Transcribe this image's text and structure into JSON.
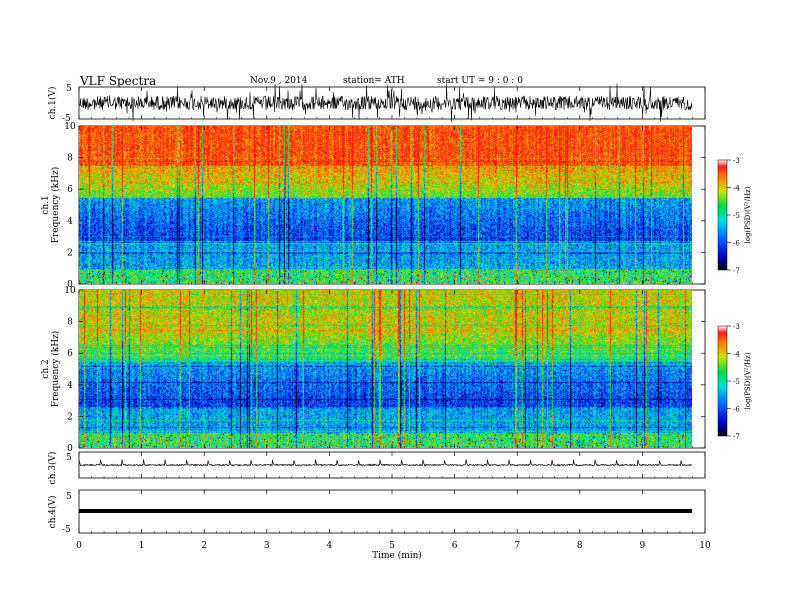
{
  "header": {
    "title": "VLF  Spectra",
    "date": "Nov.9  , 2014",
    "station": "station= ATH",
    "start": "start  UT  =   9  : 0  : 0"
  },
  "chart_data": {
    "type": "heatmap",
    "x": {
      "label": "Time  (min)",
      "range": [
        0,
        10
      ],
      "ticks": [
        "0",
        "1",
        "2",
        "3",
        "4",
        "5",
        "6",
        "7",
        "8",
        "9",
        "10"
      ]
    },
    "panels": [
      {
        "id": "ch1-waveform",
        "type": "line",
        "ylabel": "ch.1(V)",
        "ylim": [
          -5,
          5
        ],
        "yticks": [
          "5",
          "-5"
        ]
      },
      {
        "id": "ch1-spectrogram",
        "type": "heatmap",
        "ylabel": "ch.1",
        "ylabel2": "Frequency  (kHz)",
        "ylim": [
          0,
          10
        ],
        "yticks": [
          "0",
          "2",
          "4",
          "6",
          "8",
          "10"
        ],
        "colorbar": {
          "label": "log(PSD)(V²/Hz)",
          "range": [
            -7,
            -3
          ],
          "ticks": [
            "-3",
            "-4",
            "-5",
            "-6",
            "-7"
          ]
        }
      },
      {
        "id": "ch2-spectrogram",
        "type": "heatmap",
        "ylabel": "ch.2",
        "ylabel2": "Frequency  (kHz)",
        "ylim": [
          0,
          10
        ],
        "yticks": [
          "0",
          "2",
          "4",
          "6",
          "8",
          "10"
        ],
        "colorbar": {
          "label": "log(PSD)(V²/Hz)",
          "range": [
            -7,
            -3
          ],
          "ticks": [
            "-3",
            "-4",
            "-5",
            "-6",
            "-7"
          ]
        }
      },
      {
        "id": "ch3-waveform",
        "type": "line",
        "ylabel": "ch.3(V)",
        "ylim": [
          -5,
          5
        ],
        "yticks": [
          "5",
          "-5"
        ]
      },
      {
        "id": "ch4-waveform",
        "type": "line",
        "ylabel": "ch.4(V)",
        "ylim": [
          -5,
          5
        ],
        "yticks": [
          "5",
          "-5"
        ]
      }
    ],
    "data_end_min": 9.8
  }
}
